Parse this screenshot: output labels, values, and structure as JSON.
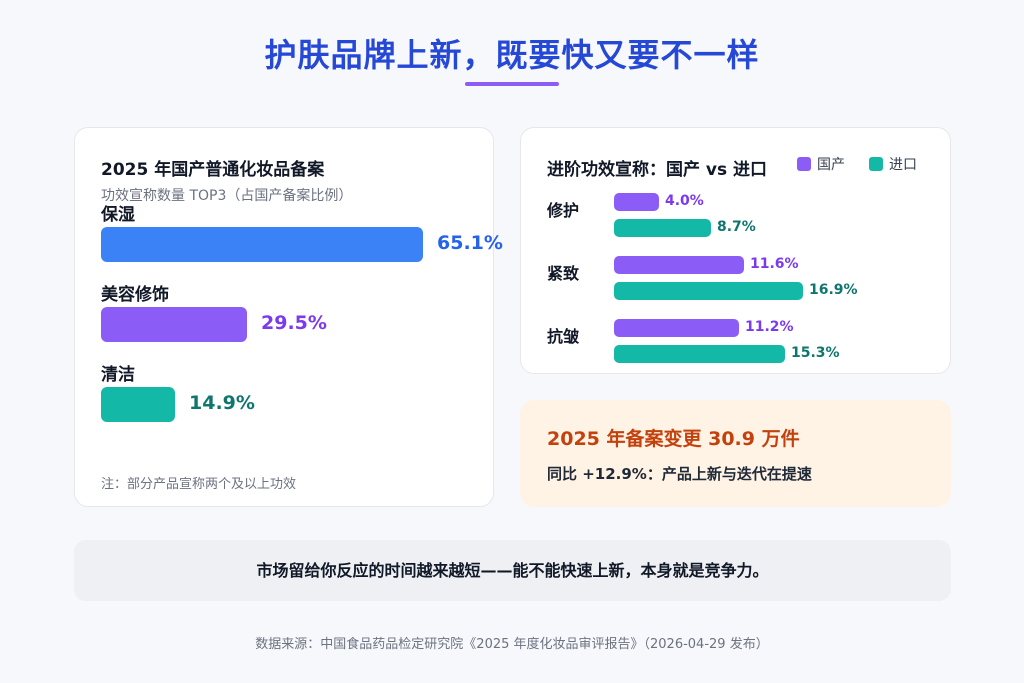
{
  "page": {
    "title": "护肤品牌上新，既要快又要不一样",
    "footer": "数据来源：中国食品药品检定研究院《2025 年度化妆品审评报告》（2026-04-29 发布）"
  },
  "colors": {
    "blue": "#3b82f6",
    "purple": "#8b5cf6",
    "teal": "#14b8a6",
    "purple_text": "#7c3aed",
    "teal_text": "#0f766e",
    "blue_text": "#2563eb"
  },
  "chart_data": [
    {
      "type": "bar",
      "title": "2025 年国产普通化妆品备案",
      "subtitle": "功效宣称数量 TOP3（占国产备案比例）",
      "categories": [
        "保湿",
        "美容修饰",
        "清洁"
      ],
      "values": [
        65.1,
        29.5,
        14.9
      ],
      "value_labels": [
        "65.1%",
        "29.5%",
        "14.9%"
      ],
      "bar_colors": [
        "#3b82f6",
        "#8b5cf6",
        "#14b8a6"
      ],
      "value_colors": [
        "#2563eb",
        "#7c3aed",
        "#0f766e"
      ],
      "orientation": "horizontal",
      "note": "注：部分产品宣称两个及以上功效"
    },
    {
      "type": "bar",
      "title": "进阶功效宣称：国产 vs 进口",
      "orientation": "horizontal",
      "legend": "top-right",
      "categories": [
        "修护",
        "紧致",
        "抗皱"
      ],
      "series": [
        {
          "name": "国产",
          "values": [
            4.0,
            11.6,
            11.2
          ],
          "value_labels": [
            "4.0%",
            "11.6%",
            "11.2%"
          ],
          "color": "#8b5cf6"
        },
        {
          "name": "进口",
          "values": [
            8.7,
            16.9,
            15.3
          ],
          "value_labels": [
            "8.7%",
            "16.9%",
            "15.3%"
          ],
          "color": "#14b8a6"
        }
      ]
    }
  ],
  "summary": {
    "headline": "2025 年备案变更 30.9 万件",
    "sub": "同比 +12.9%：产品上新与迭代在提速"
  },
  "banner": {
    "text": "市场留给你反应的时间越来越短——能不能快速上新，本身就是竞争力。"
  }
}
